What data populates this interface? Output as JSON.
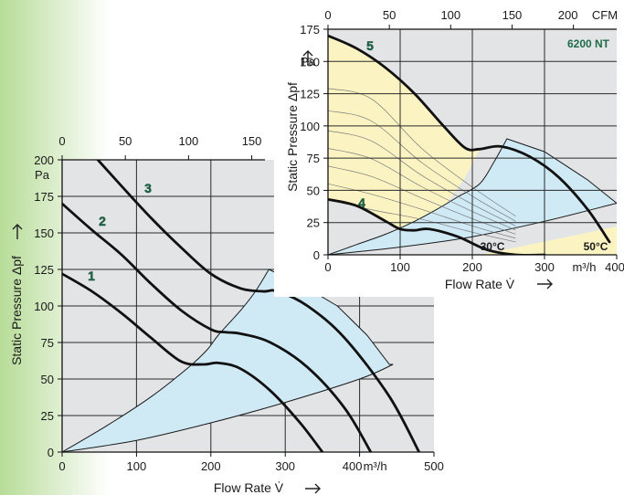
{
  "chart_data": [
    {
      "type": "line",
      "title": "",
      "xlabel": "Flow Rate  V̇",
      "xunit": "m³/h",
      "x2unit": "",
      "ylabel": "Static Pressure  Δpf",
      "yunit": "Pa",
      "xlim": [
        0,
        500
      ],
      "ylim": [
        0,
        200
      ],
      "x_ticks": [
        "0",
        "100",
        "200",
        "300",
        "400",
        "500"
      ],
      "y_ticks": [
        "0",
        "25",
        "50",
        "75",
        "100",
        "125",
        "150",
        "175",
        "200"
      ],
      "x2_ticks": [
        "0",
        "50",
        "100",
        "150"
      ],
      "x2_values_m3h": [
        0,
        85,
        170,
        255
      ],
      "grid": true,
      "series": [
        {
          "name": "1",
          "x": [
            0,
            40,
            80,
            120,
            160,
            190,
            210,
            240,
            280,
            320,
            350
          ],
          "y": [
            122,
            110,
            95,
            78,
            62,
            60,
            61,
            57,
            42,
            20,
            0
          ]
        },
        {
          "name": "2",
          "x": [
            0,
            40,
            80,
            120,
            160,
            200,
            220,
            240,
            280,
            330,
            380,
            415
          ],
          "y": [
            170,
            152,
            135,
            115,
            97,
            84,
            82,
            81,
            75,
            58,
            30,
            0
          ]
        },
        {
          "name": "3",
          "x": [
            48,
            80,
            120,
            160,
            200,
            240,
            270,
            290,
            330,
            380,
            440,
            480
          ],
          "y": [
            200,
            182,
            160,
            140,
            122,
            112,
            110,
            110,
            100,
            78,
            38,
            0
          ]
        }
      ],
      "operating_region": {
        "lower_x": [
          0,
          100,
          200,
          300,
          400,
          445
        ],
        "lower_y": [
          0,
          8,
          20,
          34,
          50,
          60
        ],
        "upper_x": [
          278,
          320,
          370,
          410,
          440
        ],
        "upper_y": [
          125,
          115,
          100,
          80,
          60
        ],
        "left_x": [
          278,
          260,
          240,
          210,
          195,
          170,
          120,
          60,
          0
        ],
        "left_y": [
          125,
          110,
          97,
          80,
          70,
          58,
          38,
          18,
          0
        ]
      },
      "colors": {
        "region": "#cfe9f5",
        "curve": "#111111",
        "plot_bg": "#e3e4e6"
      }
    },
    {
      "type": "line",
      "title": "6200 NT",
      "xlabel": "Flow Rate  V̇",
      "xunit": "m³/h",
      "x2unit": "CFM",
      "ylabel": "Static Pressure  Δpf",
      "yunit": "Pa",
      "xlim": [
        0,
        400
      ],
      "ylim": [
        0,
        175
      ],
      "x_ticks": [
        "0",
        "100",
        "200",
        "300",
        "400"
      ],
      "y_ticks": [
        "0",
        "25",
        "50",
        "75",
        "100",
        "125",
        "150",
        "175"
      ],
      "x2_ticks": [
        "0",
        "50",
        "100",
        "150",
        "200"
      ],
      "x2_values_m3h": [
        0,
        85,
        170,
        255,
        340
      ],
      "grid": true,
      "series": [
        {
          "name": "5",
          "x": [
            0,
            40,
            80,
            120,
            160,
            190,
            210,
            240,
            280,
            320,
            360,
            390
          ],
          "y": [
            170,
            160,
            145,
            125,
            100,
            83,
            82,
            84,
            76,
            60,
            35,
            10
          ]
        },
        {
          "name": "4",
          "x": [
            0,
            40,
            80,
            100,
            120,
            140,
            180,
            220,
            260,
            300
          ],
          "y": [
            43,
            38,
            26,
            20,
            19,
            20,
            14,
            4,
            0,
            0
          ]
        }
      ],
      "temperature_labels": [
        "30°C",
        "50°C"
      ],
      "operating_region": {
        "lower_x": [
          0,
          100,
          200,
          300,
          400
        ],
        "lower_y": [
          0,
          6,
          14,
          26,
          40
        ],
        "upper_x": [
          248,
          300,
          360,
          400
        ],
        "upper_y": [
          90,
          80,
          58,
          40
        ],
        "left_x": [
          248,
          230,
          210,
          180,
          150,
          120,
          80,
          40,
          0
        ],
        "left_y": [
          90,
          72,
          55,
          45,
          35,
          26,
          16,
          8,
          0
        ]
      },
      "colors": {
        "region": "#cfe9f5",
        "highlight": "#fbf4c2",
        "curve": "#111111",
        "plot_bg": "#e3e4e6"
      }
    }
  ]
}
